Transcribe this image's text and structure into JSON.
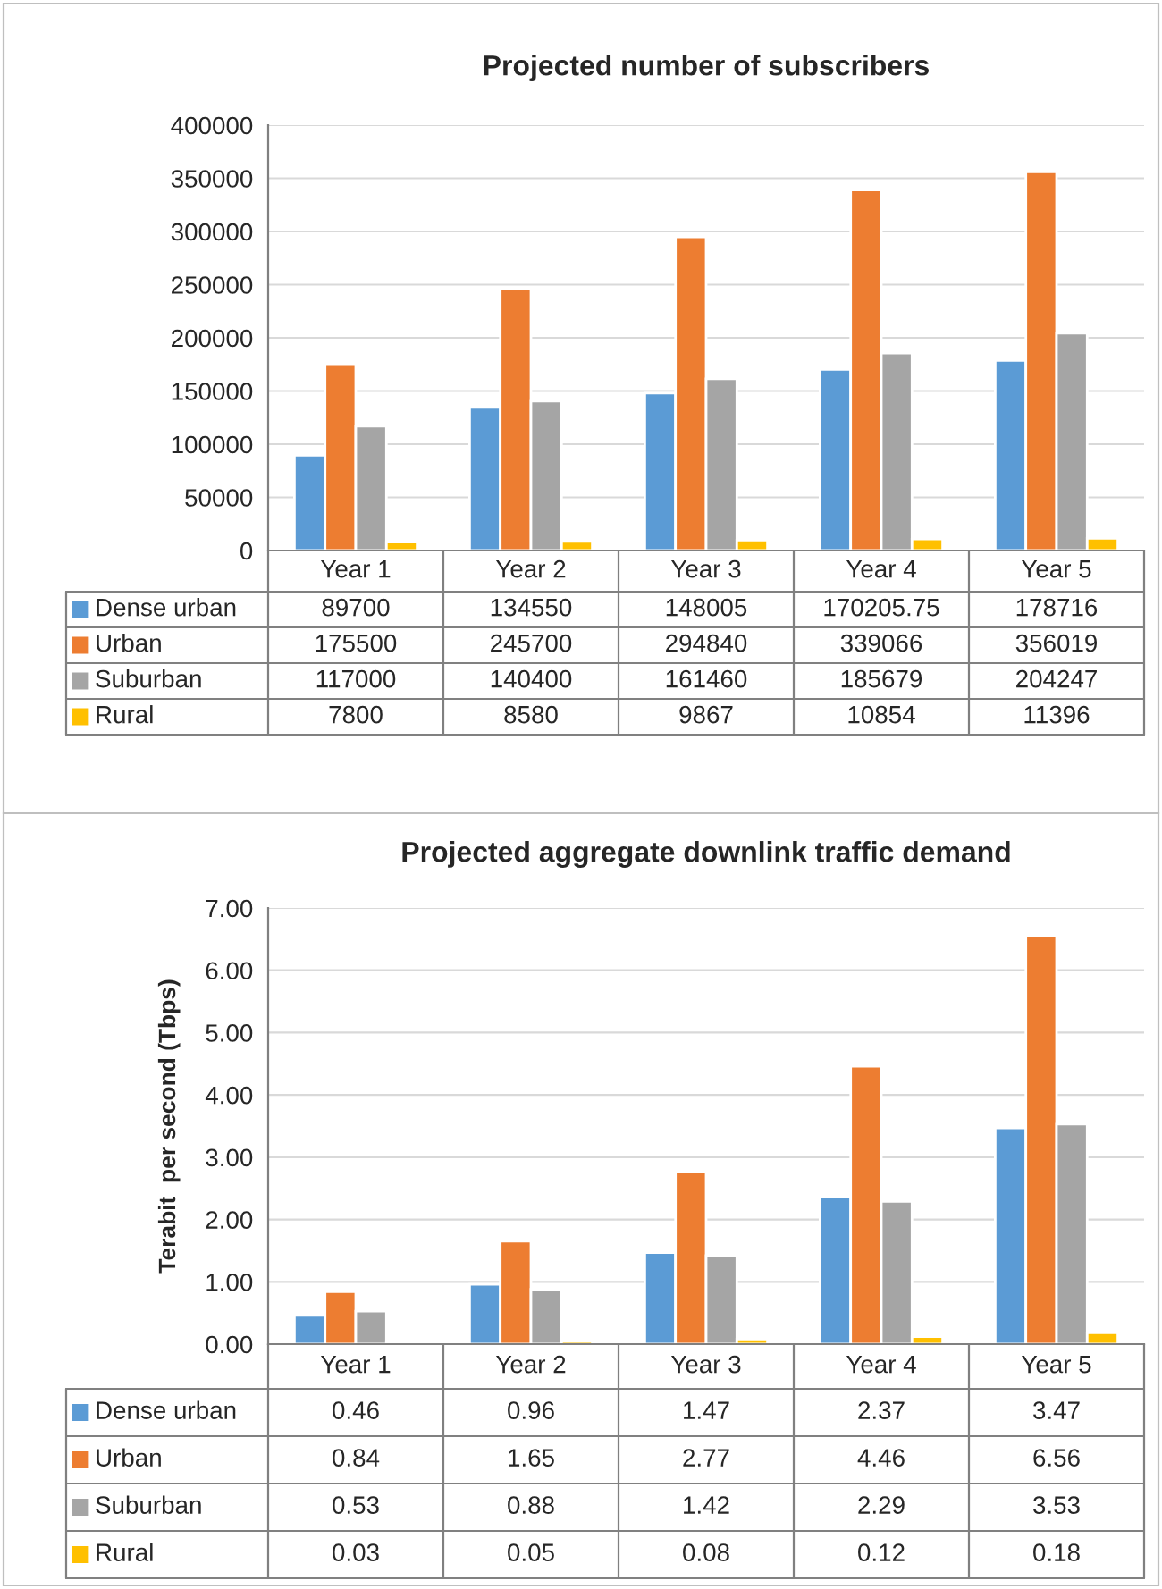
{
  "chart_data": [
    {
      "type": "bar",
      "title": "Projected number of subscribers",
      "categories": [
        "Year 1",
        "Year 2",
        "Year 3",
        "Year 4",
        "Year 5"
      ],
      "series": [
        {
          "name": "Dense urban",
          "color": "#5b9bd5",
          "values": [
            89700,
            134550,
            148005,
            170205.75,
            178716
          ]
        },
        {
          "name": "Urban",
          "color": "#ed7d31",
          "values": [
            175500,
            245700,
            294840,
            339066,
            356019
          ]
        },
        {
          "name": "Suburban",
          "color": "#a5a5a5",
          "values": [
            117000,
            140400,
            161460,
            185679,
            204247
          ]
        },
        {
          "name": "Rural",
          "color": "#ffc000",
          "values": [
            7800,
            8580,
            9867,
            10854,
            11396
          ]
        }
      ],
      "ylim": [
        0,
        400000
      ],
      "yticks": [
        0,
        50000,
        100000,
        150000,
        200000,
        250000,
        300000,
        350000,
        400000
      ],
      "grid": "y",
      "data_labels": true,
      "legend": "bottom"
    },
    {
      "type": "bar",
      "title": "Projected aggregate downlink traffic demand",
      "ylabel": "Terabit  per second (Tbps)",
      "categories": [
        "Year 1",
        "Year 2",
        "Year 3",
        "Year 4",
        "Year 5"
      ],
      "series": [
        {
          "name": "Dense urban",
          "color": "#5b9bd5",
          "values": [
            0.46,
            0.96,
            1.47,
            2.37,
            3.47
          ]
        },
        {
          "name": "Urban",
          "color": "#ed7d31",
          "values": [
            0.84,
            1.65,
            2.77,
            4.46,
            6.56
          ]
        },
        {
          "name": "Suburban",
          "color": "#a5a5a5",
          "values": [
            0.53,
            0.88,
            1.42,
            2.29,
            3.53
          ]
        },
        {
          "name": "Rural",
          "color": "#ffc000",
          "values": [
            0.03,
            0.05,
            0.08,
            0.12,
            0.18
          ]
        }
      ],
      "ylim": [
        0,
        7
      ],
      "yticks": [
        {
          "value": 0,
          "label": "0.00"
        },
        {
          "value": 1,
          "label": "1.00"
        },
        {
          "value": 2,
          "label": "2.00"
        },
        {
          "value": 3,
          "label": "3.00"
        },
        {
          "value": 4,
          "label": "4.00"
        },
        {
          "value": 5,
          "label": "5.00"
        },
        {
          "value": 6,
          "label": "6.00"
        },
        {
          "value": 7,
          "label": "7.00"
        }
      ],
      "grid": "y",
      "data_labels": true,
      "legend": "bottom"
    }
  ]
}
